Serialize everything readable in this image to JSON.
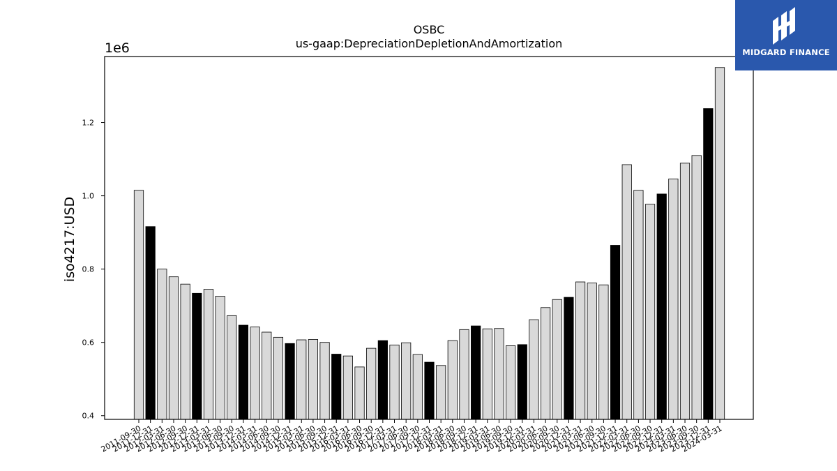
{
  "brand": {
    "name": "MIDGARD FINANCE",
    "color": "#2a58ad"
  },
  "chart_data": {
    "type": "bar",
    "title": "OSBC",
    "subtitle": "us-gaap:DepreciationDepletionAndAmortization",
    "ylabel": "iso4217:USD",
    "xlabel": "",
    "y_scale_label": "1e6",
    "ylim": [
      390000,
      1380000
    ],
    "yticks": [
      {
        "value": 400000,
        "label": "0.4"
      },
      {
        "value": 600000,
        "label": "0.6"
      },
      {
        "value": 800000,
        "label": "0.8"
      },
      {
        "value": 1000000,
        "label": "1.0"
      },
      {
        "value": 1200000,
        "label": "1.2"
      }
    ],
    "grid": false,
    "colors": {
      "normal": "#d9d9d9",
      "highlight": "#000000",
      "edge": "#000000"
    },
    "categories": [
      "2011-09-30",
      "2011-12-31",
      "2012-03-31",
      "2012-06-30",
      "2012-09-30",
      "2012-12-31",
      "2013-03-31",
      "2013-06-30",
      "2013-09-30",
      "2013-12-31",
      "2014-03-31",
      "2014-06-30",
      "2014-09-30",
      "2014-12-31",
      "2015-03-31",
      "2015-06-30",
      "2015-09-30",
      "2015-12-31",
      "2016-03-31",
      "2016-06-30",
      "2016-09-30",
      "2016-12-31",
      "2017-03-31",
      "2017-06-30",
      "2017-09-30",
      "2017-12-31",
      "2018-03-31",
      "2018-06-30",
      "2018-09-30",
      "2018-12-31",
      "2019-03-31",
      "2019-06-30",
      "2019-09-30",
      "2019-12-31",
      "2020-03-31",
      "2020-06-30",
      "2020-09-30",
      "2020-12-31",
      "2021-03-31",
      "2021-06-30",
      "2021-09-30",
      "2021-12-31",
      "2022-03-31",
      "2022-06-30",
      "2022-09-30",
      "2022-12-31",
      "2023-03-31",
      "2023-06-30",
      "2023-09-30",
      "2023-12-31",
      "2024-03-31"
    ],
    "values": [
      1015000,
      916000,
      800000,
      779000,
      759000,
      734000,
      745000,
      726000,
      673000,
      647000,
      642000,
      628000,
      614000,
      597000,
      607000,
      608000,
      600000,
      568000,
      563000,
      533000,
      584000,
      605000,
      593000,
      599000,
      567000,
      546000,
      537000,
      605000,
      635000,
      645000,
      637000,
      638000,
      591000,
      594000,
      662000,
      695000,
      717000,
      723000,
      765000,
      762000,
      757000,
      865000,
      1085000,
      1015000,
      977000,
      1005000,
      1046000,
      1089000,
      1110000,
      1238000,
      1350000
    ],
    "highlight": [
      false,
      true,
      false,
      false,
      false,
      true,
      false,
      false,
      false,
      true,
      false,
      false,
      false,
      true,
      false,
      false,
      false,
      true,
      false,
      false,
      false,
      true,
      false,
      false,
      false,
      true,
      false,
      false,
      false,
      true,
      false,
      false,
      false,
      true,
      false,
      false,
      false,
      true,
      false,
      false,
      false,
      true,
      false,
      false,
      false,
      true,
      false,
      false,
      false,
      true,
      false
    ]
  }
}
